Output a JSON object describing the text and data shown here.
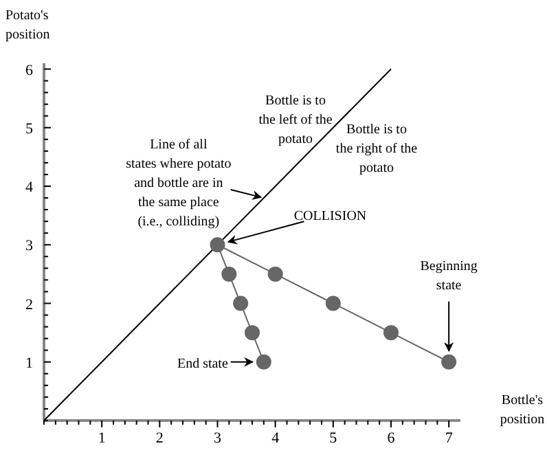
{
  "chart_data": {
    "type": "line",
    "xlabel": "Bottle's\nposition",
    "ylabel": "Potato's\nposition",
    "xlim": [
      0,
      7.2
    ],
    "ylim": [
      0,
      6.1
    ],
    "xticks": [
      {
        "value": 0,
        "label": null
      },
      {
        "value": 0.2,
        "label": null
      },
      {
        "value": 0.4,
        "label": null
      },
      {
        "value": 0.6,
        "label": null
      },
      {
        "value": 0.8,
        "label": null
      },
      1,
      {
        "value": 1.2,
        "label": null
      },
      {
        "value": 1.4,
        "label": null
      },
      {
        "value": 1.6,
        "label": null
      },
      {
        "value": 1.8,
        "label": null
      },
      2,
      {
        "value": 2.2,
        "label": null
      },
      {
        "value": 2.4,
        "label": null
      },
      {
        "value": 2.6,
        "label": null
      },
      {
        "value": 2.8,
        "label": null
      },
      3,
      {
        "value": 3.2,
        "label": null
      },
      {
        "value": 3.4,
        "label": null
      },
      {
        "value": 3.6,
        "label": null
      },
      {
        "value": 3.8,
        "label": null
      },
      4,
      {
        "value": 4.2,
        "label": null
      },
      {
        "value": 4.4,
        "label": null
      },
      {
        "value": 4.6,
        "label": null
      },
      {
        "value": 4.8,
        "label": null
      },
      5,
      {
        "value": 5.2,
        "label": null
      },
      {
        "value": 5.4,
        "label": null
      },
      {
        "value": 5.6,
        "label": null
      },
      {
        "value": 5.8,
        "label": null
      },
      6,
      {
        "value": 6.2,
        "label": null
      },
      {
        "value": 6.4,
        "label": null
      },
      {
        "value": 6.6,
        "label": null
      },
      {
        "value": 6.8,
        "label": null
      },
      7
    ],
    "yticks": [
      {
        "value": 0,
        "label": null
      },
      {
        "value": 0.2,
        "label": null
      },
      {
        "value": 0.4,
        "label": null
      },
      {
        "value": 0.6,
        "label": null
      },
      {
        "value": 0.8,
        "label": null
      },
      1,
      {
        "value": 1.2,
        "label": null
      },
      {
        "value": 1.4,
        "label": null
      },
      {
        "value": 1.6,
        "label": null
      },
      {
        "value": 1.8,
        "label": null
      },
      2,
      {
        "value": 2.2,
        "label": null
      },
      {
        "value": 2.4,
        "label": null
      },
      {
        "value": 2.6,
        "label": null
      },
      {
        "value": 2.8,
        "label": null
      },
      3,
      {
        "value": 3.2,
        "label": null
      },
      {
        "value": 3.4,
        "label": null
      },
      {
        "value": 3.6,
        "label": null
      },
      {
        "value": 3.8,
        "label": null
      },
      4,
      {
        "value": 4.2,
        "label": null
      },
      {
        "value": 4.4,
        "label": null
      },
      {
        "value": 4.6,
        "label": null
      },
      {
        "value": 4.8,
        "label": null
      },
      5,
      {
        "value": 5.2,
        "label": null
      },
      {
        "value": 5.4,
        "label": null
      },
      {
        "value": 5.6,
        "label": null
      },
      {
        "value": 5.8,
        "label": null
      },
      6
    ],
    "grid": false,
    "series": [
      {
        "color": "#000000",
        "marker": "none",
        "x": [
          0,
          6
        ],
        "values": [
          0,
          6
        ]
      },
      {
        "color": "#666666",
        "marker": "circle",
        "x": [
          7,
          6,
          5,
          4,
          3,
          3.2,
          3.4,
          3.6,
          3.8
        ],
        "values": [
          1,
          1.5,
          2,
          2.5,
          3,
          2.5,
          2,
          1.5,
          1
        ]
      }
    ],
    "annotations": [
      {
        "text": "Line of all\nstates where potato\nand bottle are in\nthe same place\n(i.e., colliding)",
        "x": 3.8,
        "y": 3.8
      },
      {
        "text": "COLLISION",
        "x": 3,
        "y": 3
      },
      {
        "text": "Beginning\nstate",
        "x": 7,
        "y": 1
      },
      {
        "text": "End state",
        "x": 3.8,
        "y": 1
      },
      "Bottle is to\nthe left of the\npotato",
      "Bottle is to\nthe right of the\npotato"
    ]
  }
}
